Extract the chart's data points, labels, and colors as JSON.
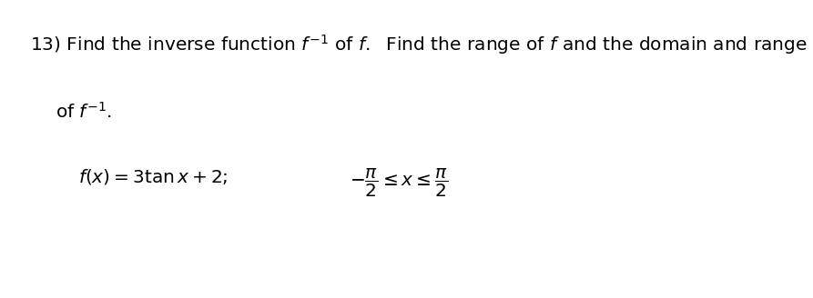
{
  "background_color": "#ffffff",
  "fig_width": 8.93,
  "fig_height": 3.28,
  "dpi": 100,
  "text_color": "#000000",
  "font_size": 14.5
}
